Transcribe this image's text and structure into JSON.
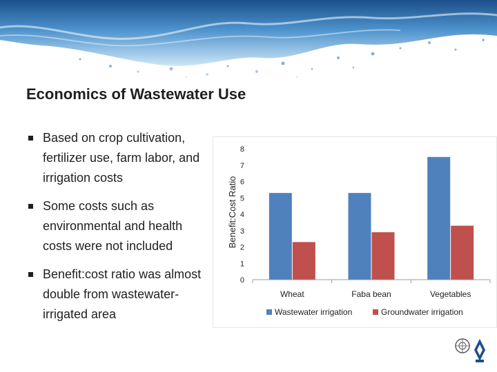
{
  "slide": {
    "title": "Economics of Wastewater Use",
    "bullets": [
      "Based on crop cultivation, fertilizer use, farm labor, and irrigation costs",
      "Some costs such as environmental and health costs were not included",
      "Benefit:cost ratio was almost  double from wastewater-irrigated area"
    ]
  },
  "chart_data": {
    "type": "bar",
    "categories": [
      "Wheat",
      "Faba bean",
      "Vegetables"
    ],
    "series": [
      {
        "name": "Wastewater irrigation",
        "values": [
          5.3,
          5.3,
          7.5
        ],
        "color": "#4f81bd"
      },
      {
        "name": "Groundwater irrigation",
        "values": [
          2.3,
          2.9,
          3.3
        ],
        "color": "#c0504d"
      }
    ],
    "ylabel": "Benefit:Cost Ratio",
    "xlabel": "",
    "ylim": [
      0,
      8
    ],
    "yticks": [
      0,
      1,
      2,
      3,
      4,
      5,
      6,
      7,
      8
    ],
    "grid": false,
    "legend": "bottom"
  }
}
